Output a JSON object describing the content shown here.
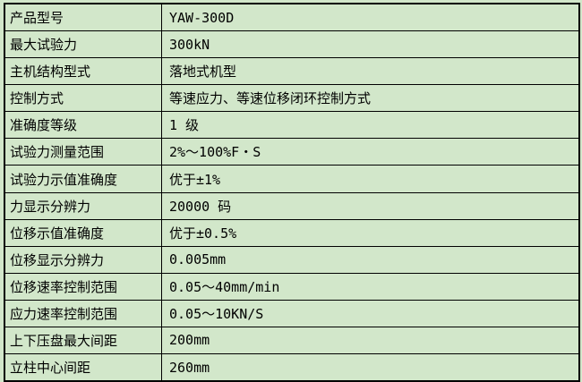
{
  "table": {
    "rows": [
      {
        "label": "产品型号",
        "value": "YAW-300D"
      },
      {
        "label": "最大试验力",
        "value": "300kN"
      },
      {
        "label": "主机结构型式",
        "value": "落地式机型"
      },
      {
        "label": "控制方式",
        "value": "等速应力、等速位移闭环控制方式"
      },
      {
        "label": "准确度等级",
        "value": "1 级"
      },
      {
        "label": "试验力测量范围",
        "value": "2%～100%F・S"
      },
      {
        "label": "试验力示值准确度",
        "value": "优于±1%"
      },
      {
        "label": "力显示分辨力",
        "value": "20000 码"
      },
      {
        "label": "位移示值准确度",
        "value": "优于±0.5%"
      },
      {
        "label": "位移显示分辨力",
        "value": "0.005mm"
      },
      {
        "label": "位移速率控制范围",
        "value": "0.05～40mm/min"
      },
      {
        "label": "应力速率控制范围",
        "value": "0.05～10KN/S"
      },
      {
        "label": "上下压盘最大间距",
        "value": "200mm"
      },
      {
        "label": "立柱中心间距",
        "value": "260mm"
      }
    ]
  },
  "colors": {
    "background": "#d2e7ca",
    "border": "#000000",
    "text": "#000000"
  }
}
